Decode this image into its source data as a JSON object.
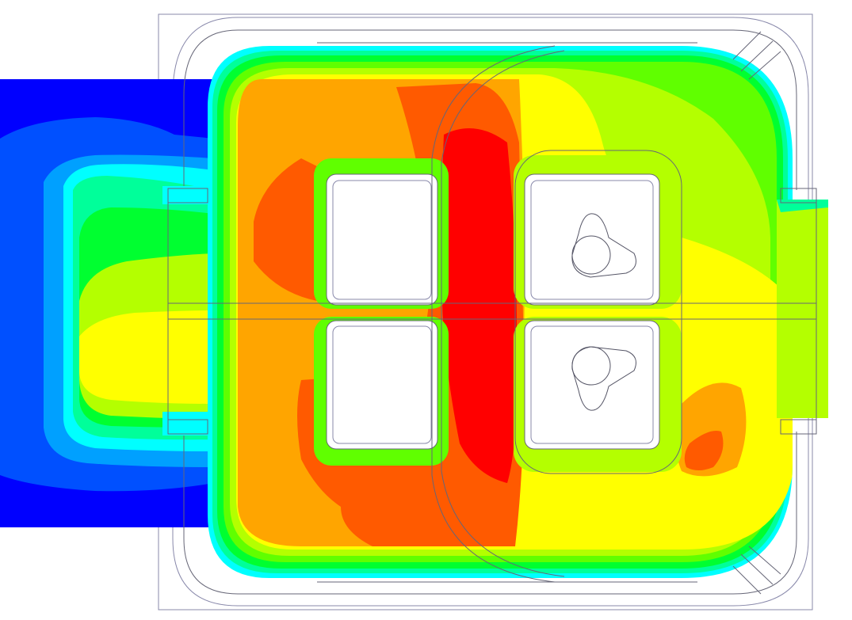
{
  "figure": {
    "kind": "thermal-contour-plot",
    "legend_shown": false,
    "text_labels_shown": false,
    "palette": {
      "band_1_coldest": "#0000ff",
      "band_2": "#0050ff",
      "band_3": "#00a0ff",
      "band_4": "#00ffff",
      "band_5": "#00ff9a",
      "band_6": "#00ff30",
      "band_7": "#60ff00",
      "band_8": "#b4ff00",
      "band_9": "#ffff00",
      "band_10": "#ffa500",
      "band_11": "#ff5a00",
      "band_12_hottest": "#ff0000",
      "outline": "#555566",
      "background": "#ffffff"
    },
    "regions": [
      "heat-sink-body",
      "left-cold-tab",
      "right-terminal-tab",
      "window-top-left",
      "window-bottom-left",
      "window-top-right",
      "window-bottom-right",
      "center-hot-column"
    ]
  }
}
